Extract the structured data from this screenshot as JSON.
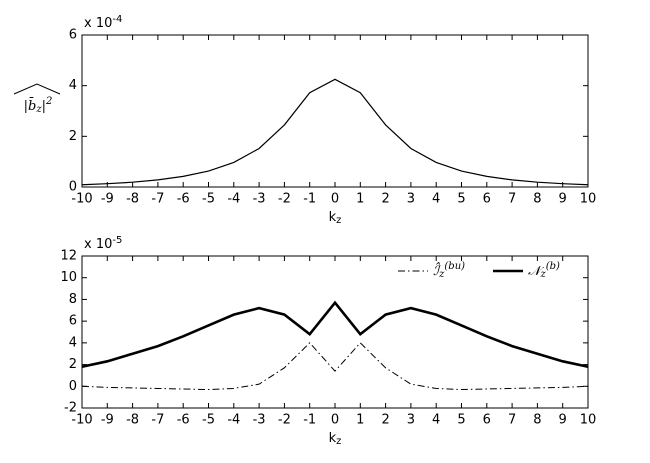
{
  "chart_data": [
    {
      "type": "line",
      "ylabel": {
        "main": "|b̄",
        "sub": "z",
        "tail": "|",
        "sup": "2"
      },
      "xlabel": {
        "main": "k",
        "sub": "z"
      },
      "y_multiplier": {
        "base": "x 10",
        "exponent": "-4"
      },
      "x": [
        -10,
        -9,
        -8,
        -7,
        -6,
        -5,
        -4,
        -3,
        -2,
        -1,
        0,
        1,
        2,
        3,
        4,
        5,
        6,
        7,
        8,
        9,
        10
      ],
      "series": [
        {
          "name": null,
          "color": "#000000",
          "width": 1.2,
          "dash": "solid",
          "values": [
            0.09,
            0.13,
            0.19,
            0.28,
            0.42,
            0.63,
            0.97,
            1.52,
            2.45,
            3.72,
            4.25,
            3.72,
            2.45,
            1.52,
            0.97,
            0.63,
            0.42,
            0.28,
            0.19,
            0.13,
            0.09
          ]
        }
      ],
      "xlim": [
        -10,
        10
      ],
      "xticks": [
        -10,
        -9,
        -8,
        -7,
        -6,
        -5,
        -4,
        -3,
        -2,
        -1,
        0,
        1,
        2,
        3,
        4,
        5,
        6,
        7,
        8,
        9,
        10
      ],
      "ylim": [
        0,
        6
      ],
      "yticks": [
        0,
        2,
        4,
        6
      ],
      "grid": false
    },
    {
      "type": "line",
      "xlabel": {
        "main": "k",
        "sub": "z"
      },
      "y_multiplier": {
        "base": "x 10",
        "exponent": "-5"
      },
      "x": [
        -10,
        -9,
        -8,
        -7,
        -6,
        -5,
        -4,
        -3,
        -2,
        -1,
        0,
        1,
        2,
        3,
        4,
        5,
        6,
        7,
        8,
        9,
        10
      ],
      "series": [
        {
          "name": "ℐ̂",
          "name_sub": "z",
          "name_sup": "(bu)",
          "color": "#000000",
          "width": 1,
          "dash": "dashdot",
          "values": [
            0,
            -0.1,
            -0.15,
            -0.2,
            -0.25,
            -0.3,
            -0.2,
            0.2,
            1.7,
            4.0,
            1.4,
            4.0,
            1.7,
            0.2,
            -0.2,
            -0.3,
            -0.25,
            -0.2,
            -0.15,
            -0.1,
            0
          ]
        },
        {
          "name": "𝒩",
          "name_sub": "z",
          "name_sup": "(b)",
          "color": "#000000",
          "width": 2.6,
          "dash": "solid",
          "values": [
            1.8,
            2.3,
            3.0,
            3.7,
            4.6,
            5.6,
            6.6,
            7.2,
            6.6,
            4.8,
            7.7,
            4.8,
            6.6,
            7.2,
            6.6,
            5.6,
            4.6,
            3.7,
            3.0,
            2.3,
            1.8
          ]
        }
      ],
      "xlim": [
        -10,
        10
      ],
      "xticks": [
        -10,
        -9,
        -8,
        -7,
        -6,
        -5,
        -4,
        -3,
        -2,
        -1,
        0,
        1,
        2,
        3,
        4,
        5,
        6,
        7,
        8,
        9,
        10
      ],
      "ylim": [
        -2,
        12
      ],
      "yticks": [
        -2,
        0,
        2,
        4,
        6,
        8,
        10,
        12
      ],
      "grid": false,
      "legend": "upper right"
    }
  ]
}
